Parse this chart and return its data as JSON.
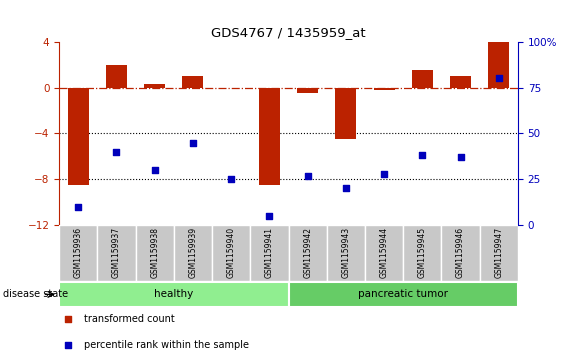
{
  "title": "GDS4767 / 1435959_at",
  "samples": [
    "GSM1159936",
    "GSM1159937",
    "GSM1159938",
    "GSM1159939",
    "GSM1159940",
    "GSM1159941",
    "GSM1159942",
    "GSM1159943",
    "GSM1159944",
    "GSM1159945",
    "GSM1159946",
    "GSM1159947"
  ],
  "bar_values": [
    -8.5,
    2.0,
    0.3,
    1.0,
    0.0,
    -8.5,
    -0.5,
    -4.5,
    -0.2,
    1.5,
    1.0,
    4.0
  ],
  "blue_values": [
    10,
    40,
    30,
    45,
    25,
    5,
    27,
    20,
    28,
    38,
    37,
    80
  ],
  "groups": [
    {
      "label": "healthy",
      "start": 0,
      "end": 6,
      "color": "#90EE90"
    },
    {
      "label": "pancreatic tumor",
      "start": 6,
      "end": 12,
      "color": "#66CC66"
    }
  ],
  "ylim_left": [
    -12,
    4
  ],
  "ylim_right": [
    0,
    100
  ],
  "yticks_left": [
    -12,
    -8,
    -4,
    0,
    4
  ],
  "yticks_right": [
    0,
    25,
    50,
    75,
    100
  ],
  "bar_color": "#BB2200",
  "blue_color": "#0000BB",
  "hline_color": "#BB2200",
  "dotted_lines": [
    -4,
    -8
  ],
  "legend_items": [
    {
      "label": "transformed count",
      "color": "#BB2200"
    },
    {
      "label": "percentile rank within the sample",
      "color": "#0000BB"
    }
  ],
  "disease_state_label": "disease state",
  "background_color": "#ffffff",
  "tick_label_color_left": "#BB2200",
  "tick_label_color_right": "#0000BB",
  "bar_width": 0.55,
  "xtick_bg": "#C8C8C8",
  "xtick_border": "#ffffff"
}
